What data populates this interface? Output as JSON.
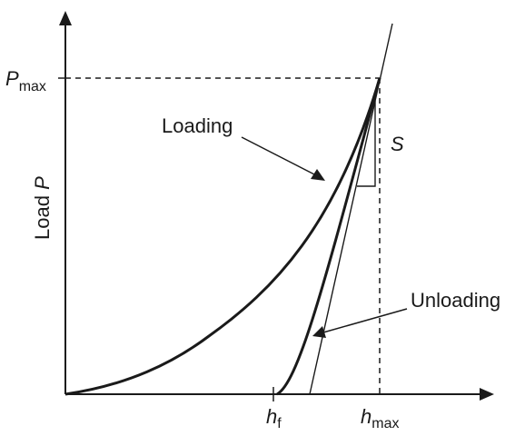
{
  "diagram": {
    "y_axis_label": "Load",
    "y_axis_symbol": "P",
    "p_max_symbol": "P",
    "p_max_subscript": "max",
    "h_f_symbol": "h",
    "h_f_subscript": "f",
    "h_max_symbol": "h",
    "h_max_subscript": "max",
    "loading_label": "Loading",
    "unloading_label": "Unloading",
    "stiffness_label": "S"
  }
}
